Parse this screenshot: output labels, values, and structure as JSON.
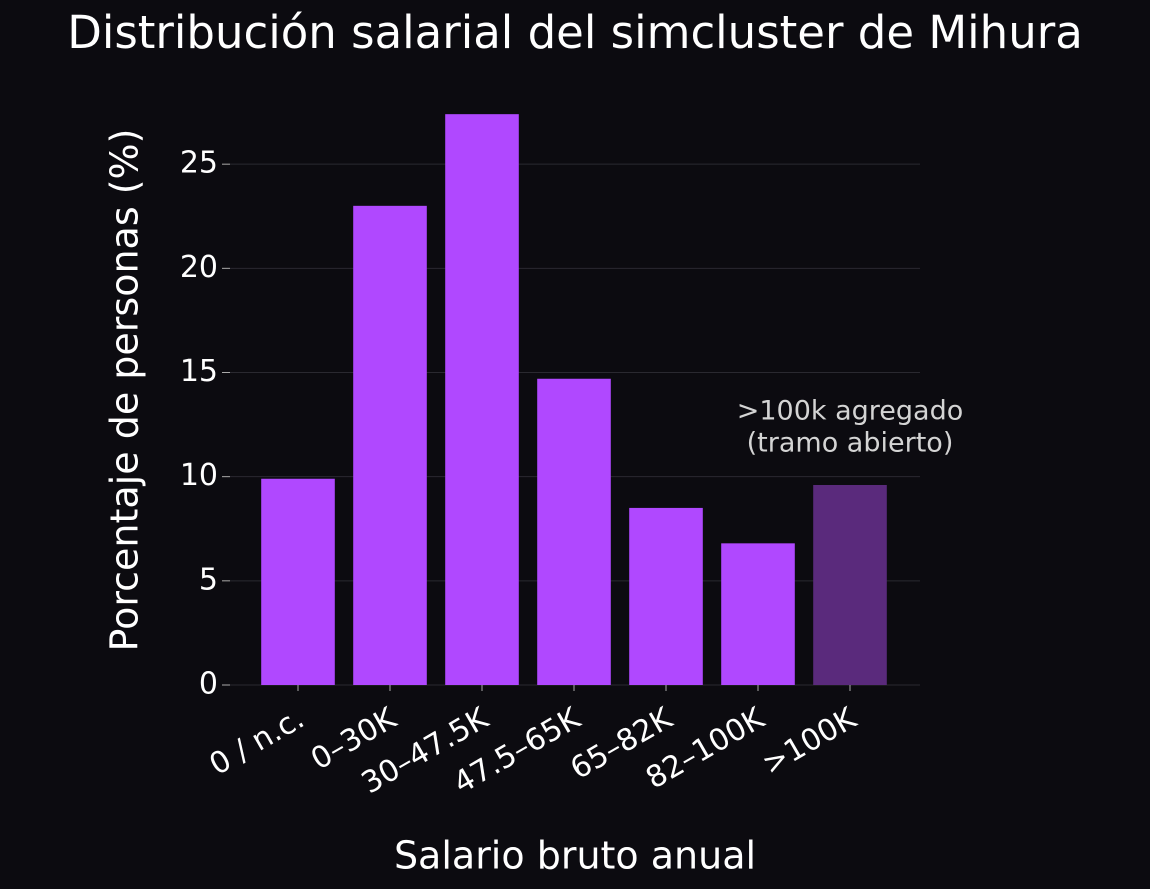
{
  "chart_data": {
    "type": "bar",
    "title": "Distribución salarial del simcluster de Mihura",
    "x_label": "Salario bruto anual",
    "y_label": "Porcentaje de personas (%)",
    "categories": [
      "0 / n.c.",
      "0–30K",
      "30–47.5K",
      "47.5–65K",
      "65–82K",
      "82–100K",
      ">100K"
    ],
    "values": [
      9.9,
      23.0,
      27.4,
      14.7,
      8.5,
      6.8,
      9.6
    ],
    "colors": [
      "#b048ff",
      "#b048ff",
      "#b048ff",
      "#b048ff",
      "#b048ff",
      "#b048ff",
      "#5a2a7c"
    ],
    "ylim": [
      0,
      28.8
    ],
    "yticks": [
      0,
      5,
      10,
      15,
      20,
      25
    ],
    "grid": true,
    "annotation": [
      ">100k agregado",
      "(tramo abierto)"
    ]
  }
}
